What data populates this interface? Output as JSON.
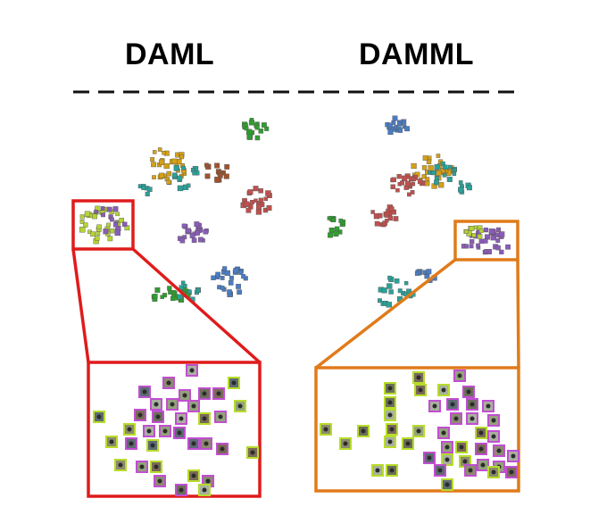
{
  "headers": {
    "left": "DAML",
    "right": "DAMML"
  },
  "palette": {
    "class_colors": [
      "#2e9e2e",
      "#8a5cb8",
      "#c0504d",
      "#d4a017",
      "#2aa198",
      "#4a7cc4",
      "#b5d334",
      "#a0522d"
    ],
    "left_highlight": "#e01b1b",
    "right_highlight": "#e07b1a",
    "thumb_border_a": "#b7dc2a",
    "thumb_border_b": "#c04fd0",
    "divider": "#111111"
  }
}
